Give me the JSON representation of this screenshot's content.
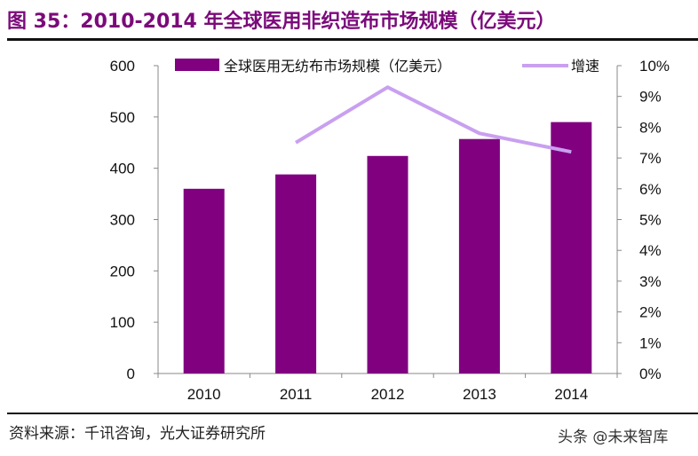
{
  "title": "图 35：2010-2014 年全球医用非织造布市场规模（亿美元）",
  "source": "资料来源：千讯咨询，光大证券研究所",
  "watermark": "头条 @未来智库",
  "chart_data": {
    "type": "bar+line",
    "categories": [
      "2010",
      "2011",
      "2012",
      "2013",
      "2014"
    ],
    "series": [
      {
        "name": "全球医用无纺布市场规模（亿美元）",
        "type": "bar",
        "axis": "left",
        "color": "#800080",
        "values": [
          360,
          388,
          424,
          457,
          490
        ]
      },
      {
        "name": "增速",
        "type": "line",
        "axis": "right",
        "color": "#c9a0f0",
        "values": [
          null,
          7.5,
          9.3,
          7.8,
          7.2
        ]
      }
    ],
    "left_axis": {
      "ylim": [
        0,
        600
      ],
      "ticks": [
        "0",
        "100",
        "200",
        "300",
        "400",
        "500",
        "600"
      ]
    },
    "right_axis": {
      "ylim": [
        0,
        10
      ],
      "ticks": [
        "0%",
        "1%",
        "2%",
        "3%",
        "4%",
        "5%",
        "6%",
        "7%",
        "8%",
        "9%",
        "10%"
      ]
    },
    "legend": "top",
    "grid": false
  }
}
